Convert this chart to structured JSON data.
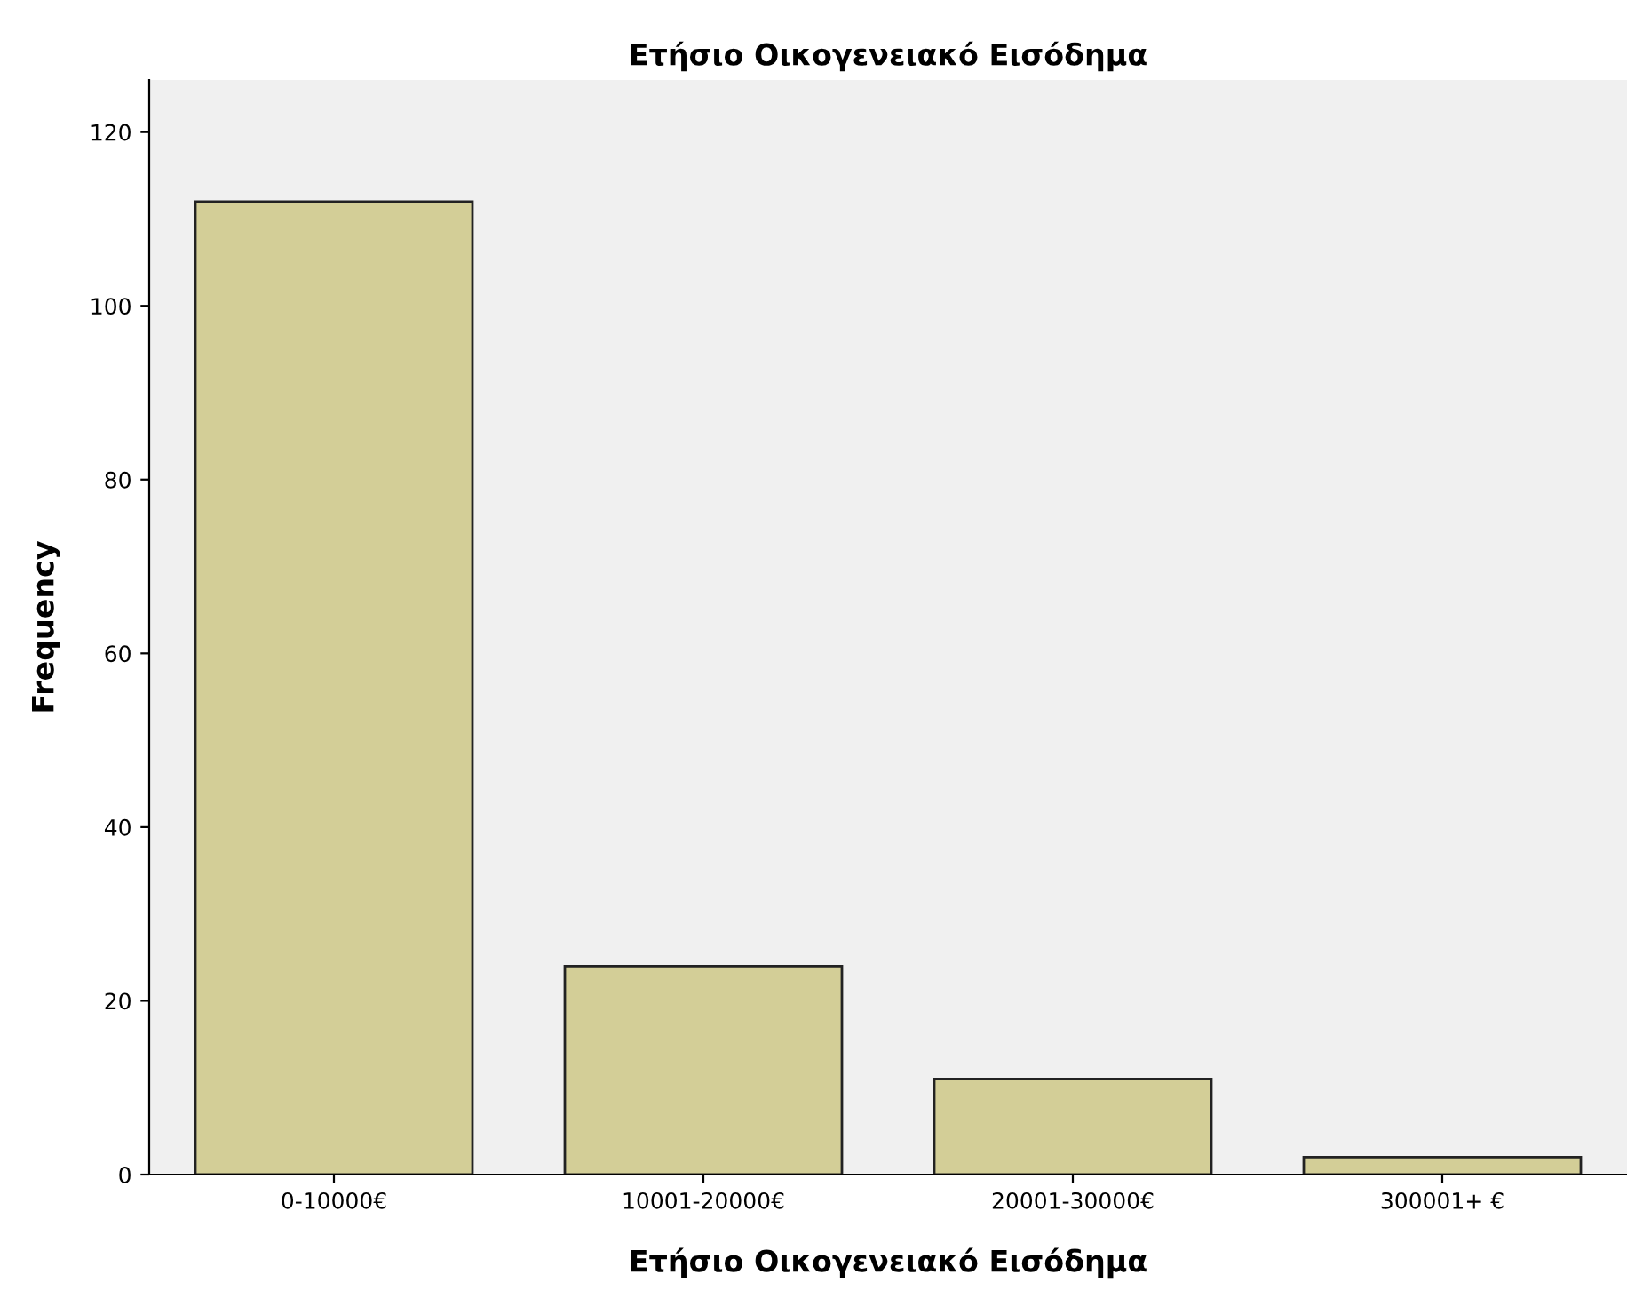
{
  "chart_data": {
    "type": "bar",
    "title": "Ετήσιο Οικογενειακό Εισόδημα",
    "xlabel": "Ετήσιο Οικογενειακό Εισόδημα",
    "ylabel": "Frequency",
    "categories": [
      "0-10000€",
      "10001-20000€",
      "20001-30000€",
      "300001+ €"
    ],
    "values": [
      112,
      24,
      11,
      2
    ],
    "color": "#d3ce97",
    "ylim": [
      0,
      126
    ],
    "yticks": [
      0,
      20,
      40,
      60,
      80,
      100,
      120
    ],
    "grid": false
  }
}
